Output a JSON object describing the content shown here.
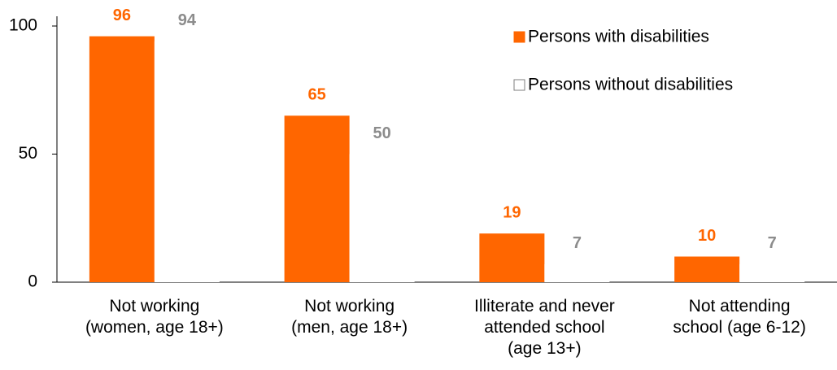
{
  "chart_data": {
    "type": "bar",
    "categories": [
      "Not working\n(women, age 18+)",
      "Not working\n(men, age 18+)",
      "Illiterate and never\nattended school\n(age 13+)",
      "Not attending\nschool (age 6-12)"
    ],
    "series": [
      {
        "name": "Persons with disabilities",
        "color": "#ff6600",
        "label_color": "#ff6600",
        "values": [
          96,
          65,
          19,
          10
        ]
      },
      {
        "name": "Persons without disabilities",
        "color": "#ffffff",
        "label_color": "#8c8c8c",
        "values": [
          94,
          50,
          7,
          7
        ]
      }
    ],
    "ylim": [
      0,
      100
    ],
    "yticks": [
      0,
      50,
      100
    ],
    "grid": false,
    "legend": "top-right"
  }
}
